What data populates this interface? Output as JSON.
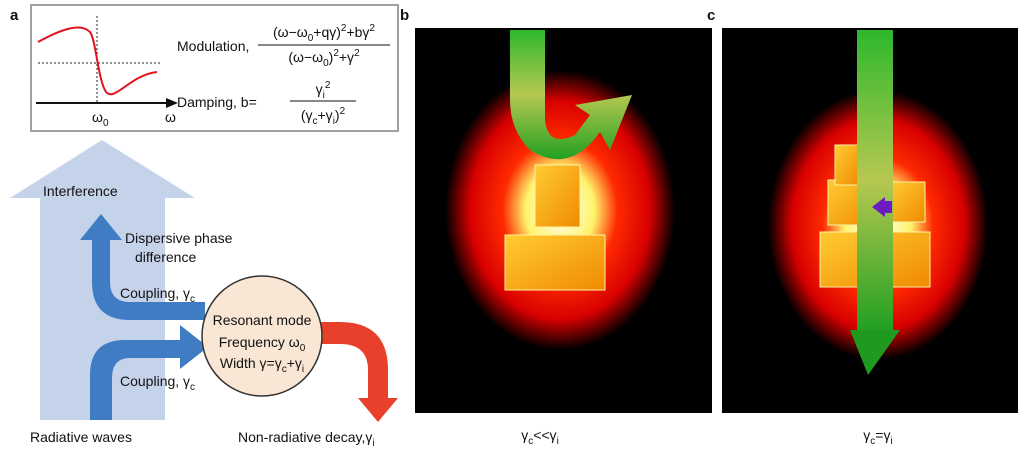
{
  "panel_labels": [
    "a",
    "b",
    "c"
  ],
  "inset": {
    "axis_label": "ω",
    "tick": [
      {
        "base": "ω",
        "sub": "0"
      }
    ],
    "modulation_label": "Modulation,",
    "modulation_numerator": [
      {
        "base": "(ω−ω",
        "sub": "0"
      },
      {
        "base": "+qγ)",
        "sup": "2"
      },
      {
        "base": "+bγ",
        "sup": "2"
      }
    ],
    "modulation_denominator": [
      {
        "base": "(ω−ω",
        "sub": "0"
      },
      {
        "base": ")",
        "sup": "2"
      },
      {
        "base": "+γ",
        "sup": "2"
      }
    ],
    "damping_label": "Damping, b=",
    "damping_numerator": [
      {
        "base": "γ",
        "sub": "i",
        "sup": "2"
      }
    ],
    "damping_denominator": [
      {
        "base": "(γ",
        "sub": "c"
      },
      {
        "base": "+γ",
        "sub": "i"
      },
      {
        "base": ")",
        "sup": "2"
      }
    ]
  },
  "diagram": {
    "interference": "Interference",
    "dispersive_line1": "Dispersive phase",
    "dispersive_line2": "difference",
    "coupling_upper": [
      {
        "base": "Coupling, γ",
        "sub": "c"
      }
    ],
    "coupling_lower": [
      {
        "base": "Coupling, γ",
        "sub": "c"
      }
    ],
    "mode_title": "Resonant mode",
    "mode_frequency": [
      {
        "base": "Frequency ω",
        "sub": "0"
      }
    ],
    "mode_width": [
      {
        "base": "Width γ=γ",
        "sub": "c"
      },
      {
        "base": "+γ",
        "sub": "i"
      }
    ],
    "radiative": "Radiative waves",
    "nonradiative": [
      {
        "base": "Non-radiative decay,γ",
        "sub": "i"
      }
    ]
  },
  "captions": {
    "b": [
      {
        "base": "γ",
        "sub": "c"
      },
      {
        "base": "<<γ",
        "sub": "i"
      }
    ],
    "c": [
      {
        "base": "γ",
        "sub": "c"
      },
      {
        "base": "=γ",
        "sub": "i"
      }
    ]
  }
}
